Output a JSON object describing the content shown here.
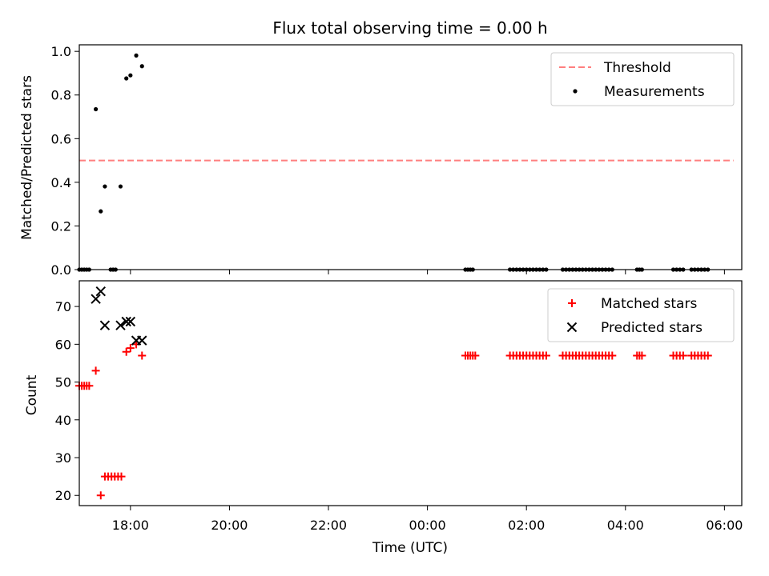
{
  "chart_data": [
    {
      "type": "scatter",
      "title": "Flux total observing time = 0.00 h",
      "xlabel": "",
      "ylabel": "Matched/Predicted stars",
      "xlim": [
        "16:58",
        "06:21"
      ],
      "ylim": [
        0,
        1.03
      ],
      "yticks": [
        "0.0",
        "0.2",
        "0.4",
        "0.6",
        "0.8",
        "1.0"
      ],
      "grid": false,
      "legend": {
        "placement": "top-right",
        "entries": [
          "Threshold",
          "Measurements"
        ]
      },
      "series": [
        {
          "name": "Threshold",
          "kind": "dashed-line",
          "color": "#ff7f7f",
          "points": [
            [
              "16:58",
              0.5
            ],
            [
              "06:11",
              0.5
            ]
          ]
        },
        {
          "name": "Measurements",
          "kind": "dots",
          "color": "#000000",
          "points": [
            [
              "16:58",
              0.0
            ],
            [
              "17:01",
              0.0
            ],
            [
              "17:04",
              0.0
            ],
            [
              "17:07",
              0.0
            ],
            [
              "17:10",
              0.0
            ],
            [
              "17:18",
              0.735
            ],
            [
              "17:24",
              0.267
            ],
            [
              "17:29",
              0.381
            ],
            [
              "17:36",
              0.0
            ],
            [
              "17:39",
              0.0
            ],
            [
              "17:42",
              0.0
            ],
            [
              "17:48",
              0.381
            ],
            [
              "17:55",
              0.876
            ],
            [
              "18:00",
              0.89
            ],
            [
              "18:07",
              0.981
            ],
            [
              "18:14",
              0.932
            ],
            [
              "00:46",
              0.0
            ],
            [
              "00:49",
              0.0
            ],
            [
              "00:52",
              0.0
            ],
            [
              "00:55",
              0.0
            ],
            [
              "01:40",
              0.0
            ],
            [
              "01:44",
              0.0
            ],
            [
              "01:48",
              0.0
            ],
            [
              "01:52",
              0.0
            ],
            [
              "01:56",
              0.0
            ],
            [
              "02:00",
              0.0
            ],
            [
              "02:04",
              0.0
            ],
            [
              "02:08",
              0.0
            ],
            [
              "02:12",
              0.0
            ],
            [
              "02:16",
              0.0
            ],
            [
              "02:20",
              0.0
            ],
            [
              "02:24",
              0.0
            ],
            [
              "02:44",
              0.0
            ],
            [
              "02:48",
              0.0
            ],
            [
              "02:52",
              0.0
            ],
            [
              "02:56",
              0.0
            ],
            [
              "03:00",
              0.0
            ],
            [
              "03:04",
              0.0
            ],
            [
              "03:08",
              0.0
            ],
            [
              "03:12",
              0.0
            ],
            [
              "03:16",
              0.0
            ],
            [
              "03:20",
              0.0
            ],
            [
              "03:24",
              0.0
            ],
            [
              "03:28",
              0.0
            ],
            [
              "03:32",
              0.0
            ],
            [
              "03:36",
              0.0
            ],
            [
              "03:40",
              0.0
            ],
            [
              "03:44",
              0.0
            ],
            [
              "04:14",
              0.0
            ],
            [
              "04:17",
              0.0
            ],
            [
              "04:20",
              0.0
            ],
            [
              "04:58",
              0.0
            ],
            [
              "05:02",
              0.0
            ],
            [
              "05:06",
              0.0
            ],
            [
              "05:10",
              0.0
            ],
            [
              "05:20",
              0.0
            ],
            [
              "05:24",
              0.0
            ],
            [
              "05:28",
              0.0
            ],
            [
              "05:32",
              0.0
            ],
            [
              "05:36",
              0.0
            ],
            [
              "05:40",
              0.0
            ]
          ]
        }
      ]
    },
    {
      "type": "scatter",
      "title": "",
      "xlabel": "Time (UTC)",
      "ylabel": "Count",
      "xlim": [
        "16:58",
        "06:21"
      ],
      "ylim": [
        17.3,
        76.8
      ],
      "xticks": [
        "18:00",
        "20:00",
        "22:00",
        "00:00",
        "02:00",
        "04:00",
        "06:00"
      ],
      "yticks": [
        "20",
        "30",
        "40",
        "50",
        "60",
        "70"
      ],
      "grid": false,
      "legend": {
        "placement": "top-right",
        "entries": [
          "Matched stars",
          "Predicted stars"
        ]
      },
      "series": [
        {
          "name": "Matched stars",
          "marker": "plus",
          "color": "#ff0000",
          "points": [
            [
              "16:58",
              49
            ],
            [
              "17:01",
              49
            ],
            [
              "17:04",
              49
            ],
            [
              "17:07",
              49
            ],
            [
              "17:10",
              49
            ],
            [
              "17:18",
              53
            ],
            [
              "17:24",
              20
            ],
            [
              "17:29",
              25
            ],
            [
              "17:33",
              25
            ],
            [
              "17:37",
              25
            ],
            [
              "17:41",
              25
            ],
            [
              "17:45",
              25
            ],
            [
              "17:49",
              25
            ],
            [
              "17:55",
              58
            ],
            [
              "18:00",
              59
            ],
            [
              "18:07",
              60
            ],
            [
              "18:14",
              57
            ],
            [
              "00:46",
              57
            ],
            [
              "00:49",
              57
            ],
            [
              "00:52",
              57
            ],
            [
              "00:55",
              57
            ],
            [
              "00:58",
              57
            ],
            [
              "01:40",
              57
            ],
            [
              "01:44",
              57
            ],
            [
              "01:48",
              57
            ],
            [
              "01:52",
              57
            ],
            [
              "01:56",
              57
            ],
            [
              "02:00",
              57
            ],
            [
              "02:04",
              57
            ],
            [
              "02:08",
              57
            ],
            [
              "02:12",
              57
            ],
            [
              "02:16",
              57
            ],
            [
              "02:20",
              57
            ],
            [
              "02:24",
              57
            ],
            [
              "02:44",
              57
            ],
            [
              "02:48",
              57
            ],
            [
              "02:52",
              57
            ],
            [
              "02:56",
              57
            ],
            [
              "03:00",
              57
            ],
            [
              "03:04",
              57
            ],
            [
              "03:08",
              57
            ],
            [
              "03:12",
              57
            ],
            [
              "03:16",
              57
            ],
            [
              "03:20",
              57
            ],
            [
              "03:24",
              57
            ],
            [
              "03:28",
              57
            ],
            [
              "03:32",
              57
            ],
            [
              "03:36",
              57
            ],
            [
              "03:40",
              57
            ],
            [
              "03:44",
              57
            ],
            [
              "04:14",
              57
            ],
            [
              "04:17",
              57
            ],
            [
              "04:20",
              57
            ],
            [
              "04:58",
              57
            ],
            [
              "05:02",
              57
            ],
            [
              "05:06",
              57
            ],
            [
              "05:10",
              57
            ],
            [
              "05:20",
              57
            ],
            [
              "05:24",
              57
            ],
            [
              "05:28",
              57
            ],
            [
              "05:32",
              57
            ],
            [
              "05:36",
              57
            ],
            [
              "05:40",
              57
            ]
          ]
        },
        {
          "name": "Predicted stars",
          "marker": "x",
          "color": "#000000",
          "points": [
            [
              "17:18",
              72
            ],
            [
              "17:24",
              74
            ],
            [
              "17:29",
              65
            ],
            [
              "17:48",
              65
            ],
            [
              "17:55",
              66
            ],
            [
              "18:00",
              66
            ],
            [
              "18:07",
              61
            ],
            [
              "18:14",
              61
            ]
          ]
        }
      ]
    }
  ]
}
